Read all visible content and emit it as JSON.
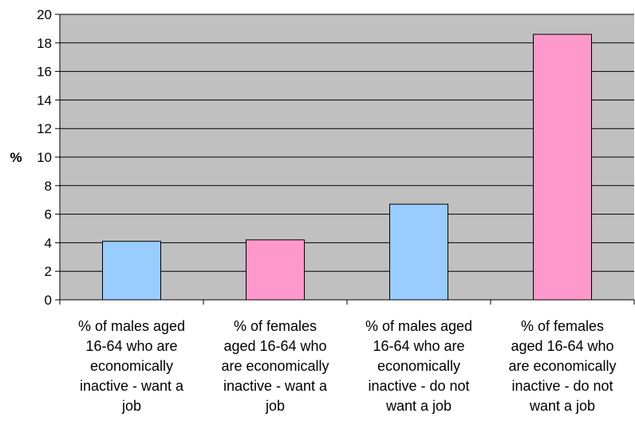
{
  "chart_data": {
    "type": "bar",
    "categories": [
      "% of males aged 16-64 who are economically inactive - want a job",
      "% of females aged 16-64 who are economically inactive - want a job",
      "% of males aged 16-64 who are economically inactive - do not want a job",
      "% of females aged 16-64 who are economically inactive - do not want a job"
    ],
    "category_lines": [
      [
        "% of males aged",
        "16-64 who are",
        "economically",
        "inactive - want a",
        "job"
      ],
      [
        "% of females",
        "aged 16-64 who",
        "are economically",
        "inactive - want a",
        "job"
      ],
      [
        "% of males aged",
        "16-64 who are",
        "economically",
        "inactive - do not",
        "want a job"
      ],
      [
        "% of females",
        "aged 16-64 who",
        "are economically",
        "inactive - do not",
        "want a job"
      ]
    ],
    "values": [
      4.1,
      4.2,
      6.7,
      18.6
    ],
    "bar_colors": [
      "#99ccff",
      "#ff99cc",
      "#99ccff",
      "#ff99cc"
    ],
    "ylabel": "%",
    "ylim": [
      0,
      20
    ],
    "yticks": [
      0,
      2,
      4,
      6,
      8,
      10,
      12,
      14,
      16,
      18,
      20
    ],
    "grid": true,
    "plot_background": "#c0c0c0",
    "legend": "none"
  }
}
